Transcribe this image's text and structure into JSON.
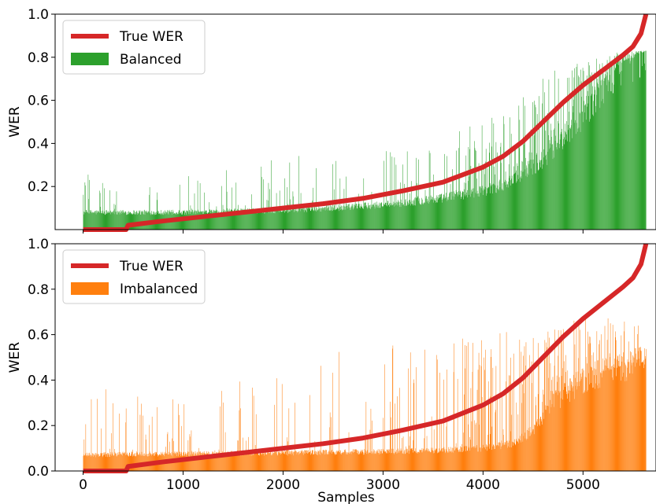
{
  "chart_data": [
    {
      "type": "bar",
      "panel": "top",
      "xlabel": "",
      "ylabel": "WER",
      "xlim": [
        -280,
        5730
      ],
      "ylim": [
        0,
        1.0
      ],
      "yticks": [
        0.2,
        0.4,
        0.6,
        0.8,
        1.0
      ],
      "ytick_labels": [
        "0.2",
        "0.4",
        "0.6",
        "0.8",
        "1.0"
      ],
      "xticks": [
        0,
        1000,
        2000,
        3000,
        4000,
        5000
      ],
      "xtick_labels": [],
      "n_samples": 5630,
      "legend_position": "upper-left",
      "series": [
        {
          "name": "True WER",
          "kind": "line",
          "color": "#d62728",
          "x": [
            0,
            430,
            450,
            800,
            1200,
            1600,
            2000,
            2400,
            2800,
            3200,
            3600,
            4000,
            4200,
            4400,
            4600,
            4800,
            5000,
            5200,
            5400,
            5500,
            5580,
            5630
          ],
          "y": [
            0.0,
            0.0,
            0.02,
            0.04,
            0.06,
            0.08,
            0.1,
            0.12,
            0.145,
            0.18,
            0.22,
            0.29,
            0.34,
            0.41,
            0.5,
            0.59,
            0.67,
            0.74,
            0.81,
            0.85,
            0.91,
            1.0
          ]
        },
        {
          "name": "Balanced",
          "kind": "bar",
          "color": "#2ca02c",
          "baseline": {
            "x": [
              0,
              500,
              1000,
              1500,
              2000,
              2500,
              3000,
              3500,
              4000,
              4200,
              4400,
              4600,
              4800,
              5000,
              5200,
              5400,
              5630
            ],
            "y": [
              0.08,
              0.08,
              0.08,
              0.085,
              0.09,
              0.1,
              0.115,
              0.14,
              0.18,
              0.21,
              0.26,
              0.33,
              0.42,
              0.55,
              0.68,
              0.78,
              0.83
            ]
          },
          "spike_max": {
            "x": [
              0,
              1000,
              2000,
              3000,
              3500,
              4000,
              4500,
              5000,
              5600
            ],
            "y": [
              0.31,
              0.3,
              0.34,
              0.37,
              0.38,
              0.53,
              0.7,
              0.81,
              0.83
            ]
          }
        }
      ]
    },
    {
      "type": "bar",
      "panel": "bottom",
      "xlabel": "Samples",
      "ylabel": "WER",
      "xlim": [
        -280,
        5730
      ],
      "ylim": [
        0,
        1.0
      ],
      "yticks": [
        0.0,
        0.2,
        0.4,
        0.6,
        0.8,
        1.0
      ],
      "ytick_labels": [
        "0.0",
        "0.2",
        "0.4",
        "0.6",
        "0.8",
        "1.0"
      ],
      "xticks": [
        0,
        1000,
        2000,
        3000,
        4000,
        5000
      ],
      "xtick_labels": [
        "0",
        "1000",
        "2000",
        "3000",
        "4000",
        "5000"
      ],
      "n_samples": 5630,
      "legend_position": "upper-left",
      "series": [
        {
          "name": "True WER",
          "kind": "line",
          "color": "#d62728",
          "x": [
            0,
            430,
            450,
            800,
            1200,
            1600,
            2000,
            2400,
            2800,
            3200,
            3600,
            4000,
            4200,
            4400,
            4600,
            4800,
            5000,
            5200,
            5400,
            5500,
            5580,
            5630
          ],
          "y": [
            0.0,
            0.0,
            0.02,
            0.04,
            0.06,
            0.08,
            0.1,
            0.12,
            0.145,
            0.18,
            0.22,
            0.29,
            0.34,
            0.41,
            0.5,
            0.59,
            0.67,
            0.74,
            0.81,
            0.85,
            0.91,
            1.0
          ]
        },
        {
          "name": "Imbalanced",
          "kind": "bar",
          "color": "#ff7f0e",
          "baseline": {
            "x": [
              0,
              500,
              1000,
              2000,
              3000,
              3500,
              4000,
              4300,
              4500,
              4700,
              5000,
              5300,
              5630
            ],
            "y": [
              0.07,
              0.075,
              0.075,
              0.08,
              0.085,
              0.09,
              0.1,
              0.12,
              0.18,
              0.3,
              0.4,
              0.45,
              0.48
            ]
          },
          "spike_max": {
            "x": [
              0,
              1000,
              2000,
              2800,
              3200,
              3600,
              4000,
              4500,
              5000,
              5600
            ],
            "y": [
              0.38,
              0.33,
              0.45,
              0.56,
              0.55,
              0.58,
              0.62,
              0.62,
              0.68,
              0.66
            ]
          }
        }
      ]
    }
  ]
}
